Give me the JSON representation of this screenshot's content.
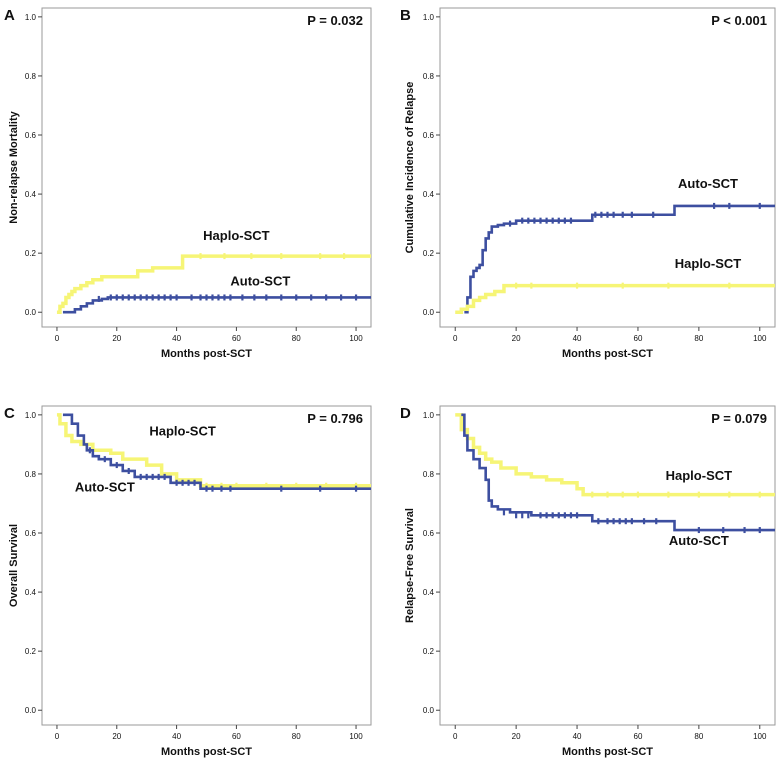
{
  "colors": {
    "auto": "#3d4fa0",
    "haplo": "#f6f576",
    "axis": "#444444",
    "frame": "#9a9a9a",
    "text": "#111111"
  },
  "chart_data": [
    {
      "type": "line",
      "panel": "A",
      "pvalue": "P = 0.032",
      "xlabel": "Months post-SCT",
      "ylabel": "Non-relapse Mortality",
      "xlim": [
        -5,
        105
      ],
      "ylim": [
        -0.05,
        1.03
      ],
      "xticks": [
        "0",
        "20",
        "40",
        "60",
        "80",
        "100"
      ],
      "yticks": [
        "0.0",
        "0.2",
        "0.4",
        "0.6",
        "0.8",
        "1.0"
      ],
      "series": [
        {
          "name": "Haplo-SCT",
          "label": "Haplo-SCT",
          "label_at": [
            60,
            0.245
          ],
          "color_key": "haplo",
          "x": [
            0,
            1,
            2,
            3,
            4,
            5,
            6,
            8,
            10,
            12,
            15,
            20,
            27,
            32,
            42,
            105
          ],
          "y": [
            0,
            0.02,
            0.03,
            0.05,
            0.06,
            0.07,
            0.08,
            0.09,
            0.1,
            0.11,
            0.12,
            0.12,
            0.14,
            0.15,
            0.19,
            0.19
          ],
          "censored": [
            [
              48,
              0.19
            ],
            [
              56,
              0.19
            ],
            [
              65,
              0.19
            ],
            [
              75,
              0.19
            ],
            [
              88,
              0.19
            ],
            [
              96,
              0.19
            ]
          ]
        },
        {
          "name": "Auto-SCT",
          "label": "Auto-SCT",
          "label_at": [
            68,
            0.09
          ],
          "color_key": "auto",
          "x": [
            2,
            4,
            6,
            8,
            10,
            12,
            15,
            17,
            105
          ],
          "y": [
            0,
            0,
            0.01,
            0.02,
            0.03,
            0.04,
            0.045,
            0.05,
            0.05
          ],
          "censored": [
            [
              14,
              0.045
            ],
            [
              18,
              0.05
            ],
            [
              20,
              0.05
            ],
            [
              22,
              0.05
            ],
            [
              24,
              0.05
            ],
            [
              26,
              0.05
            ],
            [
              28,
              0.05
            ],
            [
              30,
              0.05
            ],
            [
              32,
              0.05
            ],
            [
              34,
              0.05
            ],
            [
              36,
              0.05
            ],
            [
              38,
              0.05
            ],
            [
              40,
              0.05
            ],
            [
              45,
              0.05
            ],
            [
              48,
              0.05
            ],
            [
              50,
              0.05
            ],
            [
              52,
              0.05
            ],
            [
              54,
              0.05
            ],
            [
              56,
              0.05
            ],
            [
              58,
              0.05
            ],
            [
              62,
              0.05
            ],
            [
              66,
              0.05
            ],
            [
              70,
              0.05
            ],
            [
              75,
              0.05
            ],
            [
              80,
              0.05
            ],
            [
              85,
              0.05
            ],
            [
              90,
              0.05
            ],
            [
              95,
              0.05
            ],
            [
              100,
              0.05
            ]
          ]
        }
      ]
    },
    {
      "type": "line",
      "panel": "B",
      "pvalue": "P < 0.001",
      "xlabel": "Months post-SCT",
      "ylabel": "Cumulative Incidence of Relapse",
      "xlim": [
        -5,
        105
      ],
      "ylim": [
        -0.05,
        1.03
      ],
      "xticks": [
        "0",
        "20",
        "40",
        "60",
        "80",
        "100"
      ],
      "yticks": [
        "0.0",
        "0.2",
        "0.4",
        "0.6",
        "0.8",
        "1.0"
      ],
      "series": [
        {
          "name": "Auto-SCT",
          "label": "Auto-SCT",
          "label_at": [
            83,
            0.42
          ],
          "color_key": "auto",
          "x": [
            3,
            4,
            5,
            6,
            7,
            8,
            9,
            10,
            11,
            12,
            14,
            16,
            20,
            30,
            45,
            72,
            105
          ],
          "y": [
            0,
            0.05,
            0.12,
            0.14,
            0.15,
            0.16,
            0.21,
            0.25,
            0.27,
            0.29,
            0.295,
            0.3,
            0.31,
            0.31,
            0.33,
            0.36,
            0.36
          ],
          "censored": [
            [
              18,
              0.3
            ],
            [
              22,
              0.31
            ],
            [
              24,
              0.31
            ],
            [
              26,
              0.31
            ],
            [
              28,
              0.31
            ],
            [
              30,
              0.31
            ],
            [
              32,
              0.31
            ],
            [
              34,
              0.31
            ],
            [
              36,
              0.31
            ],
            [
              38,
              0.31
            ],
            [
              46,
              0.33
            ],
            [
              48,
              0.33
            ],
            [
              50,
              0.33
            ],
            [
              52,
              0.33
            ],
            [
              55,
              0.33
            ],
            [
              58,
              0.33
            ],
            [
              65,
              0.33
            ],
            [
              85,
              0.36
            ],
            [
              90,
              0.36
            ],
            [
              100,
              0.36
            ]
          ]
        },
        {
          "name": "Haplo-SCT",
          "label": "Haplo-SCT",
          "label_at": [
            83,
            0.15
          ],
          "color_key": "haplo",
          "x": [
            0,
            2,
            4,
            6,
            8,
            10,
            13,
            16,
            105
          ],
          "y": [
            0,
            0.01,
            0.02,
            0.04,
            0.05,
            0.06,
            0.07,
            0.09,
            0.09
          ],
          "censored": [
            [
              20,
              0.09
            ],
            [
              25,
              0.09
            ],
            [
              40,
              0.09
            ],
            [
              55,
              0.09
            ],
            [
              70,
              0.09
            ],
            [
              90,
              0.09
            ]
          ]
        }
      ]
    },
    {
      "type": "line",
      "panel": "C",
      "pvalue": "P = 0.796",
      "xlabel": "Months post-SCT",
      "ylabel": "Overall Survival",
      "xlim": [
        -5,
        105
      ],
      "ylim": [
        -0.05,
        1.03
      ],
      "xticks": [
        "0",
        "20",
        "40",
        "60",
        "80",
        "100"
      ],
      "yticks": [
        "0.0",
        "0.2",
        "0.4",
        "0.6",
        "0.8",
        "1.0"
      ],
      "series": [
        {
          "name": "Haplo-SCT",
          "label": "Haplo-SCT",
          "label_at": [
            42,
            0.93
          ],
          "color_key": "haplo",
          "x": [
            0,
            1,
            3,
            5,
            8,
            12,
            18,
            22,
            30,
            35,
            40,
            48,
            105
          ],
          "y": [
            1,
            0.97,
            0.93,
            0.91,
            0.9,
            0.88,
            0.87,
            0.85,
            0.83,
            0.8,
            0.78,
            0.76,
            0.76
          ],
          "censored": [
            [
              50,
              0.76
            ],
            [
              55,
              0.76
            ],
            [
              60,
              0.76
            ],
            [
              70,
              0.76
            ],
            [
              80,
              0.76
            ],
            [
              90,
              0.76
            ],
            [
              100,
              0.76
            ]
          ]
        },
        {
          "name": "Auto-SCT",
          "label": "Auto-SCT",
          "label_at": [
            16,
            0.74
          ],
          "color_key": "auto",
          "x": [
            2,
            5,
            7,
            9,
            10,
            12,
            14,
            18,
            22,
            26,
            38,
            45,
            48,
            105
          ],
          "y": [
            1,
            0.97,
            0.93,
            0.9,
            0.88,
            0.86,
            0.85,
            0.83,
            0.81,
            0.79,
            0.77,
            0.77,
            0.75,
            0.75
          ],
          "censored": [
            [
              11,
              0.88
            ],
            [
              16,
              0.85
            ],
            [
              20,
              0.83
            ],
            [
              24,
              0.81
            ],
            [
              28,
              0.79
            ],
            [
              30,
              0.79
            ],
            [
              32,
              0.79
            ],
            [
              34,
              0.79
            ],
            [
              36,
              0.79
            ],
            [
              40,
              0.77
            ],
            [
              42,
              0.77
            ],
            [
              44,
              0.77
            ],
            [
              46,
              0.77
            ],
            [
              50,
              0.75
            ],
            [
              52,
              0.75
            ],
            [
              55,
              0.75
            ],
            [
              58,
              0.75
            ],
            [
              75,
              0.75
            ],
            [
              88,
              0.75
            ],
            [
              100,
              0.75
            ]
          ]
        }
      ]
    },
    {
      "type": "line",
      "panel": "D",
      "pvalue": "P = 0.079",
      "xlabel": "Months post-SCT",
      "ylabel": "Relapse-Free Survival",
      "xlim": [
        -5,
        105
      ],
      "ylim": [
        -0.05,
        1.03
      ],
      "xticks": [
        "0",
        "20",
        "40",
        "60",
        "80",
        "100"
      ],
      "yticks": [
        "0.0",
        "0.2",
        "0.4",
        "0.6",
        "0.8",
        "1.0"
      ],
      "series": [
        {
          "name": "Haplo-SCT",
          "label": "Haplo-SCT",
          "label_at": [
            80,
            0.78
          ],
          "color_key": "haplo",
          "x": [
            0,
            2,
            4,
            6,
            8,
            10,
            12,
            15,
            20,
            25,
            30,
            35,
            40,
            42,
            105
          ],
          "y": [
            1,
            0.95,
            0.92,
            0.89,
            0.87,
            0.85,
            0.84,
            0.82,
            0.8,
            0.79,
            0.78,
            0.77,
            0.75,
            0.73,
            0.73
          ],
          "censored": [
            [
              45,
              0.73
            ],
            [
              50,
              0.73
            ],
            [
              55,
              0.73
            ],
            [
              60,
              0.73
            ],
            [
              70,
              0.73
            ],
            [
              80,
              0.73
            ],
            [
              90,
              0.73
            ],
            [
              100,
              0.73
            ]
          ]
        },
        {
          "name": "Auto-SCT",
          "label": "Auto-SCT",
          "label_at": [
            80,
            0.56
          ],
          "color_key": "auto",
          "x": [
            2,
            3,
            4,
            6,
            8,
            10,
            11,
            12,
            14,
            18,
            25,
            45,
            72,
            105
          ],
          "y": [
            1,
            0.93,
            0.88,
            0.85,
            0.82,
            0.78,
            0.71,
            0.69,
            0.68,
            0.67,
            0.66,
            0.64,
            0.61,
            0.61
          ],
          "censored": [
            [
              16,
              0.67
            ],
            [
              20,
              0.66
            ],
            [
              22,
              0.66
            ],
            [
              24,
              0.66
            ],
            [
              28,
              0.66
            ],
            [
              30,
              0.66
            ],
            [
              32,
              0.66
            ],
            [
              34,
              0.66
            ],
            [
              36,
              0.66
            ],
            [
              38,
              0.66
            ],
            [
              40,
              0.66
            ],
            [
              47,
              0.64
            ],
            [
              50,
              0.64
            ],
            [
              52,
              0.64
            ],
            [
              54,
              0.64
            ],
            [
              56,
              0.64
            ],
            [
              58,
              0.64
            ],
            [
              62,
              0.64
            ],
            [
              66,
              0.64
            ],
            [
              80,
              0.61
            ],
            [
              88,
              0.61
            ],
            [
              95,
              0.61
            ],
            [
              100,
              0.61
            ]
          ]
        }
      ]
    }
  ]
}
